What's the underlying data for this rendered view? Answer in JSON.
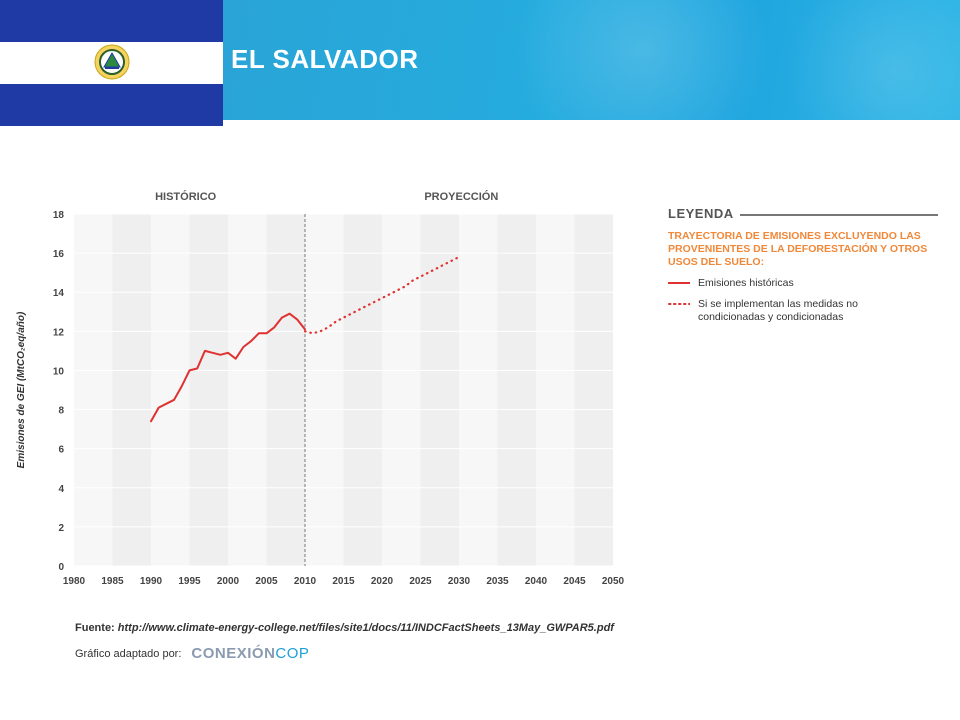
{
  "header": {
    "country": "EL SALVADOR"
  },
  "colors": {
    "flag_blue": "#1f3aa5",
    "banner_blue": "#25acdf",
    "historic_line": "#e03131",
    "projection_line": "#e03131",
    "legend_orange": "#f0883a"
  },
  "chart_data": {
    "type": "line",
    "sections": [
      "HISTÓRICO",
      "PROYECCIÓN"
    ],
    "ylabel": "Emisiones de GEI (MtCO₂eq/año)",
    "xlim": [
      1980,
      2050
    ],
    "ylim": [
      0,
      18
    ],
    "xticks": [
      1980,
      1985,
      1990,
      1995,
      2000,
      2005,
      2010,
      2015,
      2020,
      2025,
      2030,
      2035,
      2040,
      2045,
      2050
    ],
    "yticks": [
      0,
      2,
      4,
      6,
      8,
      10,
      12,
      14,
      16,
      18
    ],
    "divider_x": 2010,
    "grid": true,
    "series": [
      {
        "name": "Emisiones históricas",
        "style": "solid",
        "x": [
          1990,
          1991,
          1992,
          1993,
          1994,
          1995,
          1996,
          1997,
          1998,
          1999,
          2000,
          2001,
          2002,
          2003,
          2004,
          2005,
          2006,
          2007,
          2008,
          2009,
          2010
        ],
        "y": [
          7.4,
          8.1,
          8.3,
          8.5,
          9.2,
          10.0,
          10.1,
          11.0,
          10.9,
          10.8,
          10.9,
          10.6,
          11.2,
          11.5,
          11.9,
          11.9,
          12.2,
          12.7,
          12.9,
          12.6,
          12.1
        ]
      },
      {
        "name": "Si se implementan las medidas no condicionadas y condicionadas",
        "style": "dotted",
        "x": [
          2010,
          2011,
          2012,
          2013,
          2014,
          2015,
          2016,
          2017,
          2018,
          2019,
          2020,
          2021,
          2022,
          2023,
          2024,
          2025,
          2026,
          2027,
          2028,
          2029,
          2030
        ],
        "y": [
          12.0,
          11.9,
          12.0,
          12.2,
          12.5,
          12.7,
          12.9,
          13.1,
          13.3,
          13.5,
          13.7,
          13.9,
          14.1,
          14.3,
          14.6,
          14.8,
          15.0,
          15.2,
          15.4,
          15.6,
          15.8
        ]
      }
    ]
  },
  "legend": {
    "title": "LEYENDA",
    "subtitle": "TRAYECTORIA DE EMISIONES EXCLUYENDO LAS PROVENIENTES DE LA DEFORESTACIÓN Y OTROS USOS DEL SUELO:",
    "items": [
      {
        "label": "Emisiones históricas"
      },
      {
        "label": "Si se implementan las medidas no condicionadas y condicionadas"
      }
    ]
  },
  "footer": {
    "source_label": "Fuente:",
    "source_url": "http://www.climate-energy-college.net/files/site1/docs/11/INDCFactSheets_13May_GWPAR5.pdf",
    "credit_label": "Gráfico adaptado por:",
    "brand_a": "CONEXIÓN",
    "brand_b": "COP"
  }
}
